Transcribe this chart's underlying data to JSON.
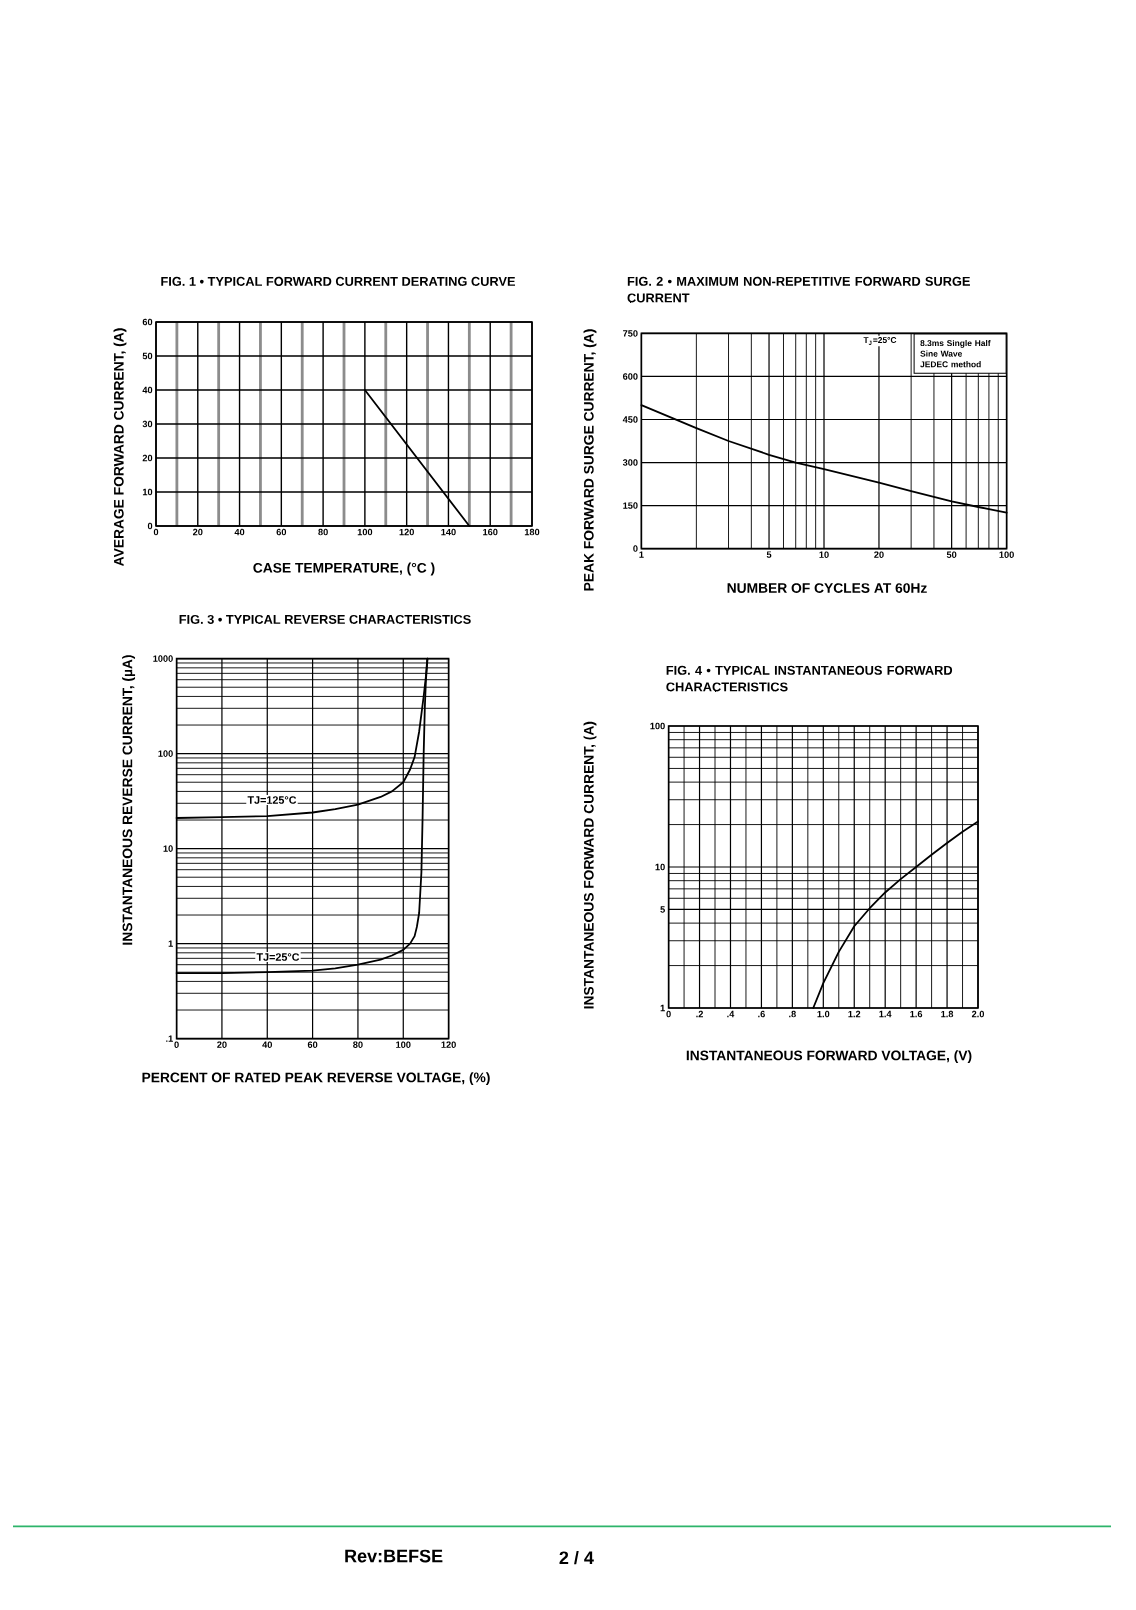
{
  "chart_data": [
    {
      "type": "line",
      "title": "FIG. 1 • TYPICAL FORWARD CURRENT DERATING CURVE",
      "xlabel": "CASE TEMPERATURE, (°C )",
      "ylabel": "AVERAGE FORWARD CURRENT, (A)",
      "x": [
        100,
        150
      ],
      "values": [
        40,
        0
      ],
      "color": "#000000",
      "xlim": [
        0,
        180
      ],
      "xticks": [
        0,
        {
          "value": 10,
          "label": null
        },
        20,
        {
          "value": 30,
          "label": null
        },
        40,
        {
          "value": 50,
          "label": null
        },
        60,
        {
          "value": 70,
          "label": null
        },
        80,
        {
          "value": 90,
          "label": null
        },
        100,
        {
          "value": 110,
          "label": null
        },
        120,
        {
          "value": 130,
          "label": null
        },
        140,
        {
          "value": 150,
          "label": null
        },
        160,
        {
          "value": 170,
          "label": null
        },
        180
      ],
      "ylim": [
        0,
        60
      ],
      "yticks": [
        0,
        10,
        20,
        30,
        40,
        50,
        60
      ],
      "grid": true
    },
    {
      "type": "line",
      "title": "FIG. 2 • MAXIMUM NON-REPETITIVE FORWARD SURGE CURRENT",
      "xlabel": "NUMBER OF CYCLES AT 60Hz",
      "ylabel": "PEAK FORWARD SURGE CURRENT, (A)",
      "log": "x",
      "x": [
        1,
        2,
        3,
        5,
        7,
        10,
        20,
        30,
        50,
        70,
        100
      ],
      "values": [
        500,
        420,
        375,
        327,
        300,
        277,
        230,
        200,
        165,
        145,
        125
      ],
      "color": "#000000",
      "xlim": [
        1,
        100
      ],
      "xticks": [
        1,
        {
          "value": 2,
          "label": null
        },
        {
          "value": 3,
          "label": null
        },
        {
          "value": 4,
          "label": null
        },
        5,
        {
          "value": 6,
          "label": null
        },
        {
          "value": 7,
          "label": null
        },
        {
          "value": 8,
          "label": null
        },
        {
          "value": 9,
          "label": null
        },
        10,
        20,
        {
          "value": 30,
          "label": null
        },
        {
          "value": 40,
          "label": null
        },
        50,
        {
          "value": 60,
          "label": null
        },
        {
          "value": 70,
          "label": null
        },
        {
          "value": 80,
          "label": null
        },
        {
          "value": 90,
          "label": null
        },
        100
      ],
      "ylim": [
        0,
        750
      ],
      "yticks": [
        0,
        150,
        300,
        450,
        600,
        750
      ],
      "grid": true,
      "annotations": [
        "T$_{J}$=25°C",
        "8.3ms Single Half",
        "Sine Wave",
        "JEDEC method"
      ]
    },
    {
      "type": "line",
      "title": "FIG. 3 • TYPICAL REVERSE CHARACTERISTICS",
      "xlabel": "PERCENT OF RATED PEAK REVERSE VOLTAGE, (%)",
      "ylabel": "INSTANTANEOUS REVERSE CURRENT, (µA)",
      "log": "y",
      "series": [
        {
          "name": "TJ=125°C",
          "color": "#000000",
          "x": [
            0,
            20,
            40,
            60,
            70,
            80,
            90,
            95,
            100,
            103,
            105,
            106,
            107,
            108,
            109,
            110,
            110.6
          ],
          "values": [
            21,
            21.5,
            22,
            24,
            26,
            29,
            35,
            40,
            50,
            68,
            92,
            125,
            170,
            260,
            400,
            650,
            1000
          ]
        },
        {
          "name": "TJ=25°C",
          "color": "#000000",
          "x": [
            0,
            20,
            40,
            60,
            70,
            80,
            90,
            95,
            100,
            103,
            105,
            106,
            107,
            108,
            108.5,
            109,
            109.5,
            110,
            110.7
          ],
          "values": [
            0.49,
            0.49,
            0.5,
            0.52,
            0.55,
            0.6,
            0.68,
            0.75,
            0.86,
            1,
            1.2,
            1.5,
            2.1,
            5.6,
            20,
            100,
            300,
            600,
            1000
          ]
        }
      ],
      "xlim": [
        0,
        120
      ],
      "xticks": [
        0,
        20,
        40,
        60,
        80,
        100,
        120
      ],
      "ylim": [
        0.1,
        1000
      ],
      "yticks": [
        {
          "value": 0.1,
          "label": ".1"
        },
        {
          "value": 0.2,
          "label": null
        },
        {
          "value": 0.3,
          "label": null
        },
        {
          "value": 0.4,
          "label": null
        },
        {
          "value": 0.5,
          "label": null
        },
        {
          "value": 0.6,
          "label": null
        },
        {
          "value": 0.7,
          "label": null
        },
        {
          "value": 0.8,
          "label": null
        },
        {
          "value": 0.9,
          "label": null
        },
        1,
        {
          "value": 2,
          "label": null
        },
        {
          "value": 3,
          "label": null
        },
        {
          "value": 4,
          "label": null
        },
        {
          "value": 5,
          "label": null
        },
        {
          "value": 6,
          "label": null
        },
        {
          "value": 7,
          "label": null
        },
        {
          "value": 8,
          "label": null
        },
        {
          "value": 9,
          "label": null
        },
        10,
        {
          "value": 20,
          "label": null
        },
        {
          "value": 30,
          "label": null
        },
        {
          "value": 40,
          "label": null
        },
        {
          "value": 50,
          "label": null
        },
        {
          "value": 60,
          "label": null
        },
        {
          "value": 70,
          "label": null
        },
        {
          "value": 80,
          "label": null
        },
        {
          "value": 90,
          "label": null
        },
        100,
        {
          "value": 200,
          "label": null
        },
        {
          "value": 300,
          "label": null
        },
        {
          "value": 400,
          "label": null
        },
        {
          "value": 500,
          "label": null
        },
        {
          "value": 600,
          "label": null
        },
        {
          "value": 700,
          "label": null
        },
        {
          "value": 800,
          "label": null
        },
        {
          "value": 900,
          "label": null
        },
        1000
      ],
      "grid": true
    },
    {
      "type": "line",
      "title": "FIG. 4 • TYPICAL INSTANTANEOUS FORWARD CHARACTERISTICS",
      "xlabel": "INSTANTANEOUS FORWARD VOLTAGE, (V)",
      "ylabel": "INSTANTANEOUS FORWARD CURRENT, (A)",
      "log": "y",
      "x": [
        0.935,
        1,
        1.1,
        1.2,
        1.3,
        1.4,
        1.5,
        1.6,
        1.7,
        1.8,
        1.9,
        2
      ],
      "values": [
        1,
        1.5,
        2.5,
        3.8,
        5.1,
        6.6,
        8.2,
        10,
        12.2,
        14.8,
        17.8,
        21
      ],
      "color": "#000000",
      "xlim": [
        0,
        2
      ],
      "xticks": [
        0,
        {
          "value": 0.1,
          "label": null
        },
        {
          "value": 0.2,
          "label": ".2"
        },
        {
          "value": 0.3,
          "label": null
        },
        {
          "value": 0.4,
          "label": ".4"
        },
        {
          "value": 0.5,
          "label": null
        },
        {
          "value": 0.6,
          "label": ".6"
        },
        {
          "value": 0.7,
          "label": null
        },
        {
          "value": 0.8,
          "label": ".8"
        },
        {
          "value": 0.9,
          "label": null
        },
        {
          "value": 1,
          "label": "1.0"
        },
        {
          "value": 1.1,
          "label": null
        },
        1.2,
        {
          "value": 1.3,
          "label": null
        },
        1.4,
        {
          "value": 1.5,
          "label": null
        },
        1.6,
        {
          "value": 1.7,
          "label": null
        },
        1.8,
        {
          "value": 1.9,
          "label": null
        },
        {
          "value": 2,
          "label": "2.0"
        }
      ],
      "ylim": [
        1,
        100
      ],
      "yticks": [
        1,
        {
          "value": 2,
          "label": null
        },
        {
          "value": 3,
          "label": null
        },
        {
          "value": 4,
          "label": null
        },
        5,
        {
          "value": 6,
          "label": null
        },
        {
          "value": 7,
          "label": null
        },
        {
          "value": 8,
          "label": null
        },
        {
          "value": 9,
          "label": null
        },
        10,
        {
          "value": 20,
          "label": null
        },
        {
          "value": 30,
          "label": null
        },
        {
          "value": 40,
          "label": null
        },
        {
          "value": 50,
          "label": null
        },
        {
          "value": 60,
          "label": null
        },
        {
          "value": 70,
          "label": null
        },
        {
          "value": 80,
          "label": null
        },
        {
          "value": 90,
          "label": null
        },
        100
      ],
      "grid": true
    },
    {
      "type": "other",
      "annotations": [
        "Rev:BEFSE",
        "2 / 4"
      ]
    }
  ]
}
